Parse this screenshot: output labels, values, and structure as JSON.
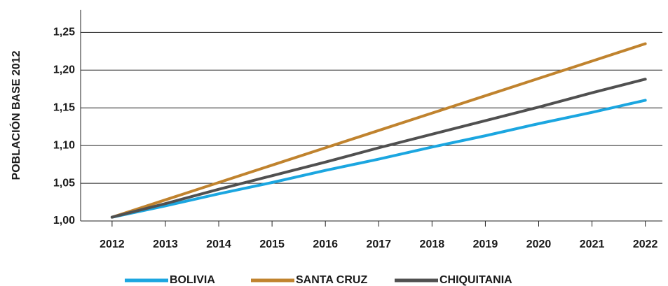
{
  "chart_data": {
    "type": "line",
    "y_label": "POBLACIÓN BASE 2012",
    "x": [
      2012,
      2013,
      2014,
      2015,
      2016,
      2017,
      2018,
      2019,
      2020,
      2021,
      2022
    ],
    "xlim": [
      2011.41,
      2022.32
    ],
    "xticks": [
      2012,
      2013,
      2014,
      2015,
      2016,
      2017,
      2018,
      2019,
      2020,
      2021,
      2022
    ],
    "ylim": [
      1.0,
      1.28
    ],
    "yticks": [
      {
        "value": 1.0,
        "label": "1,00"
      },
      {
        "value": 1.05,
        "label": "1,05"
      },
      {
        "value": 1.1,
        "label": "1,10"
      },
      {
        "value": 1.15,
        "label": "1,15"
      },
      {
        "value": 1.2,
        "label": "1,20"
      },
      {
        "value": 1.25,
        "label": "1,25"
      }
    ],
    "grid": true,
    "legend": "bottom",
    "series": [
      {
        "name": "BOLIVIA",
        "color": "#1ba6e0",
        "values": [
          1.005,
          1.02,
          1.036,
          1.051,
          1.067,
          1.082,
          1.098,
          1.113,
          1.129,
          1.144,
          1.16
        ]
      },
      {
        "name": "SANTA CRUZ",
        "color": "#c0832e",
        "values": [
          1.005,
          1.028,
          1.051,
          1.074,
          1.097,
          1.12,
          1.143,
          1.166,
          1.189,
          1.212,
          1.235
        ]
      },
      {
        "name": "CHIQUITANIA",
        "color": "#505050",
        "values": [
          1.005,
          1.023,
          1.042,
          1.06,
          1.078,
          1.097,
          1.115,
          1.133,
          1.151,
          1.17,
          1.188
        ]
      }
    ]
  }
}
